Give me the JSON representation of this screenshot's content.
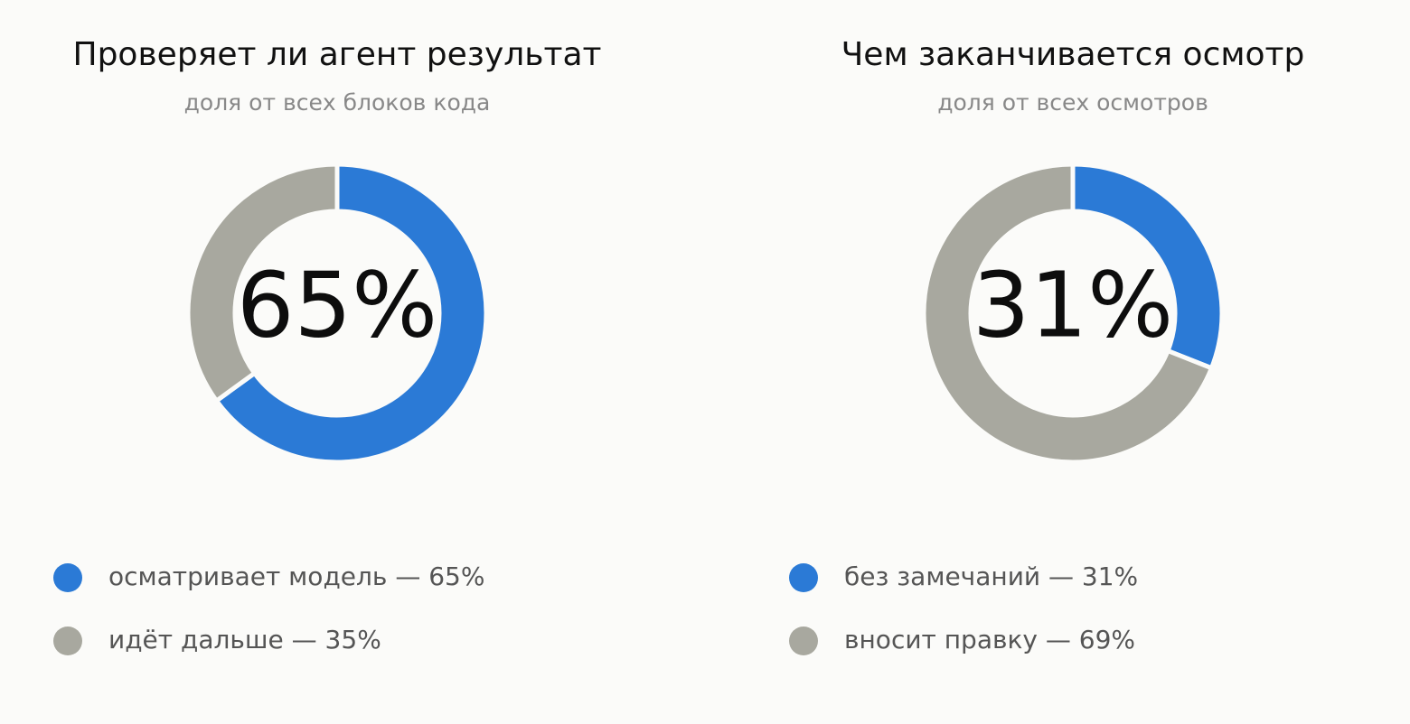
{
  "chart_data": [
    {
      "type": "pie",
      "title": "Проверяет ли агент результат",
      "subtitle": "доля от всех блоков кода",
      "center_label": "65%",
      "categories": [
        "осматривает модель — 65%",
        "идёт дальше — 35%"
      ],
      "values": [
        65,
        35
      ],
      "colors": [
        "#2b7ad6",
        "#a8a89f"
      ]
    },
    {
      "type": "pie",
      "title": "Чем заканчивается осмотр",
      "subtitle": "доля от всех осмотров",
      "center_label": "31%",
      "categories": [
        "без замечаний — 31%",
        "вносит правку — 69%"
      ],
      "values": [
        31,
        69
      ],
      "colors": [
        "#2b7ad6",
        "#a8a89f"
      ]
    }
  ]
}
